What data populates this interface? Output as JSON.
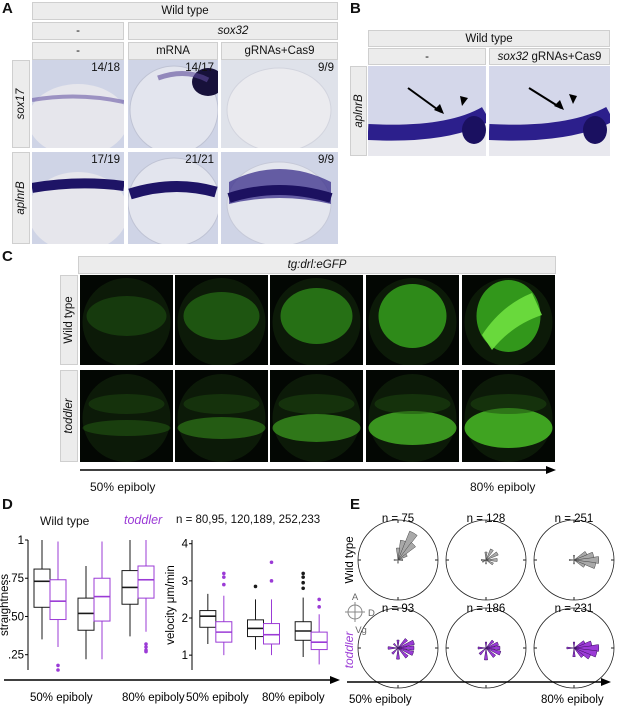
{
  "panel_letters": {
    "a": "A",
    "b": "B",
    "c": "C",
    "d": "D",
    "e": "E"
  },
  "panel_a": {
    "top_header": "Wild type",
    "header_minus": "-",
    "header_sox32": "sox32",
    "sub_minus": "-",
    "sub_mrna": "mRNA",
    "sub_grna": "gRNAs+Cas9",
    "row1_label": "sox17",
    "row2_label": "aplnrB",
    "counts_row1": [
      "14/18",
      "14/17",
      "9/9"
    ],
    "counts_row2": [
      "17/19",
      "21/21",
      "9/9"
    ]
  },
  "panel_b": {
    "top_header": "Wild type",
    "sub_minus": "-",
    "sub_gene": "sox32",
    "sub_rest": " gRNAs+Cas9",
    "row_label": "aplnrB"
  },
  "panel_c": {
    "header": "tg:drl:eGFP",
    "row1_label": "Wild type",
    "row2_label": "toddler",
    "axis_start": "50% epiboly",
    "axis_end": "80% epiboly"
  },
  "panel_d": {
    "legend_wt": "Wild type",
    "legend_td": "toddler",
    "n_label": "n = 80,95, 120,189, 252,233",
    "ylabel_left": "straightness",
    "ylabel_right": "velocity  μm/min",
    "axis_start": "50% epiboly",
    "axis_end": "80% epiboly",
    "colors": {
      "wt": "#1a1a1a",
      "td": "#9b3bd6"
    }
  },
  "panel_e": {
    "row1_label": "Wild type",
    "row2_label": "toddler",
    "wt_n": [
      "n = 75",
      "n = 128",
      "n = 251"
    ],
    "td_n": [
      "n = 93",
      "n = 186",
      "n = 231"
    ],
    "compass": {
      "a": "A",
      "v": "V",
      "d": "D",
      "vg": "Vg"
    },
    "axis_start": "50% epiboly",
    "axis_end": "80% epiboly"
  },
  "chart_data": [
    {
      "type": "box",
      "ylabel": "straightness",
      "yticks": [
        "1",
        ".75",
        ".50",
        ".25"
      ],
      "ylim": [
        0.15,
        1.0
      ],
      "xlabel": "",
      "categories": [
        "50% epiboly",
        "",
        "80% epiboly"
      ],
      "series": [
        {
          "name": "Wild type",
          "boxes": [
            {
              "min": 0.35,
              "q1": 0.56,
              "median": 0.73,
              "q3": 0.81,
              "max": 1.0
            },
            {
              "min": 0.22,
              "q1": 0.41,
              "median": 0.52,
              "q3": 0.62,
              "max": 0.83
            },
            {
              "min": 0.37,
              "q1": 0.58,
              "median": 0.69,
              "q3": 0.8,
              "max": 1.0
            }
          ]
        },
        {
          "name": "toddler",
          "boxes": [
            {
              "min": 0.3,
              "q1": 0.48,
              "median": 0.6,
              "q3": 0.74,
              "max": 0.99,
              "outliers": [
                0.18,
                0.15
              ]
            },
            {
              "min": 0.22,
              "q1": 0.47,
              "median": 0.63,
              "q3": 0.75,
              "max": 0.99
            },
            {
              "min": 0.4,
              "q1": 0.62,
              "median": 0.74,
              "q3": 0.83,
              "max": 1.0,
              "outliers": [
                0.32,
                0.3,
                0.28,
                0.27
              ]
            }
          ]
        }
      ]
    },
    {
      "type": "box",
      "ylabel": "velocity  μm/min",
      "yticks": [
        "4",
        "3",
        "2",
        "1"
      ],
      "ylim": [
        0.6,
        4.1
      ],
      "xlabel": "",
      "categories": [
        "50% epiboly",
        "",
        "80% epiboly"
      ],
      "series": [
        {
          "name": "Wild type",
          "boxes": [
            {
              "min": 1.3,
              "q1": 1.75,
              "median": 2.05,
              "q3": 2.2,
              "max": 2.65
            },
            {
              "min": 1.15,
              "q1": 1.5,
              "median": 1.72,
              "q3": 1.95,
              "max": 2.5,
              "outliers": [
                2.85
              ]
            },
            {
              "min": 0.95,
              "q1": 1.4,
              "median": 1.65,
              "q3": 1.9,
              "max": 2.55,
              "outliers": [
                2.8,
                2.95,
                3.1,
                3.2
              ]
            }
          ]
        },
        {
          "name": "toddler",
          "boxes": [
            {
              "min": 1.0,
              "q1": 1.35,
              "median": 1.62,
              "q3": 1.9,
              "max": 2.6,
              "outliers": [
                2.9,
                3.1,
                3.2
              ]
            },
            {
              "min": 1.0,
              "q1": 1.3,
              "median": 1.55,
              "q3": 1.85,
              "max": 2.5,
              "outliers": [
                3.0,
                3.5
              ]
            },
            {
              "min": 0.75,
              "q1": 1.15,
              "median": 1.35,
              "q3": 1.62,
              "max": 2.1,
              "outliers": [
                2.3,
                2.5
              ]
            }
          ]
        }
      ]
    },
    {
      "type": "rose",
      "title": "",
      "series": [
        {
          "name": "Wild type",
          "panels": [
            {
              "n_label": "n = 75",
              "petals": [
                {
                  "dir": -75,
                  "len": 0.5
                },
                {
                  "dir": -60,
                  "len": 0.78
                },
                {
                  "dir": -45,
                  "len": 0.55
                },
                {
                  "dir": -90,
                  "len": 0.3
                },
                {
                  "dir": -30,
                  "len": 0.25
                },
                {
                  "dir": 0,
                  "len": 0.12
                },
                {
                  "dir": 180,
                  "len": 0.1
                },
                {
                  "dir": 90,
                  "len": 0.08
                }
              ]
            },
            {
              "n_label": "n = 128",
              "petals": [
                {
                  "dir": -60,
                  "len": 0.3
                },
                {
                  "dir": -30,
                  "len": 0.33
                },
                {
                  "dir": 0,
                  "len": 0.28
                },
                {
                  "dir": 30,
                  "len": 0.2
                },
                {
                  "dir": -90,
                  "len": 0.2
                },
                {
                  "dir": 180,
                  "len": 0.12
                },
                {
                  "dir": 150,
                  "len": 0.1
                },
                {
                  "dir": 90,
                  "len": 0.1
                }
              ]
            },
            {
              "n_label": "n = 251",
              "petals": [
                {
                  "dir": 0,
                  "len": 0.62
                },
                {
                  "dir": 15,
                  "len": 0.55
                },
                {
                  "dir": -15,
                  "len": 0.5
                },
                {
                  "dir": -30,
                  "len": 0.35
                },
                {
                  "dir": 30,
                  "len": 0.3
                },
                {
                  "dir": 180,
                  "len": 0.12
                },
                {
                  "dir": -90,
                  "len": 0.12
                },
                {
                  "dir": 90,
                  "len": 0.1
                }
              ]
            }
          ]
        },
        {
          "name": "toddler",
          "panels": [
            {
              "n_label": "n = 93",
              "petals": [
                {
                  "dir": 0,
                  "len": 0.4
                },
                {
                  "dir": -20,
                  "len": 0.42
                },
                {
                  "dir": 20,
                  "len": 0.4
                },
                {
                  "dir": 45,
                  "len": 0.32
                },
                {
                  "dir": -45,
                  "len": 0.3
                },
                {
                  "dir": 90,
                  "len": 0.28
                },
                {
                  "dir": 180,
                  "len": 0.25
                },
                {
                  "dir": 135,
                  "len": 0.2
                },
                {
                  "dir": -90,
                  "len": 0.2
                },
                {
                  "dir": -135,
                  "len": 0.15
                }
              ]
            },
            {
              "n_label": "n = 186",
              "petals": [
                {
                  "dir": 0,
                  "len": 0.35
                },
                {
                  "dir": 20,
                  "len": 0.38
                },
                {
                  "dir": -20,
                  "len": 0.32
                },
                {
                  "dir": 45,
                  "len": 0.3
                },
                {
                  "dir": 90,
                  "len": 0.3
                },
                {
                  "dir": -45,
                  "len": 0.25
                },
                {
                  "dir": 135,
                  "len": 0.22
                },
                {
                  "dir": 180,
                  "len": 0.2
                },
                {
                  "dir": -90,
                  "len": 0.15
                }
              ]
            },
            {
              "n_label": "n = 231",
              "petals": [
                {
                  "dir": 0,
                  "len": 0.62
                },
                {
                  "dir": 15,
                  "len": 0.58
                },
                {
                  "dir": -15,
                  "len": 0.45
                },
                {
                  "dir": 30,
                  "len": 0.45
                },
                {
                  "dir": 45,
                  "len": 0.3
                },
                {
                  "dir": -30,
                  "len": 0.3
                },
                {
                  "dir": 90,
                  "len": 0.22
                },
                {
                  "dir": 180,
                  "len": 0.18
                },
                {
                  "dir": -90,
                  "len": 0.15
                }
              ]
            }
          ]
        }
      ]
    }
  ]
}
